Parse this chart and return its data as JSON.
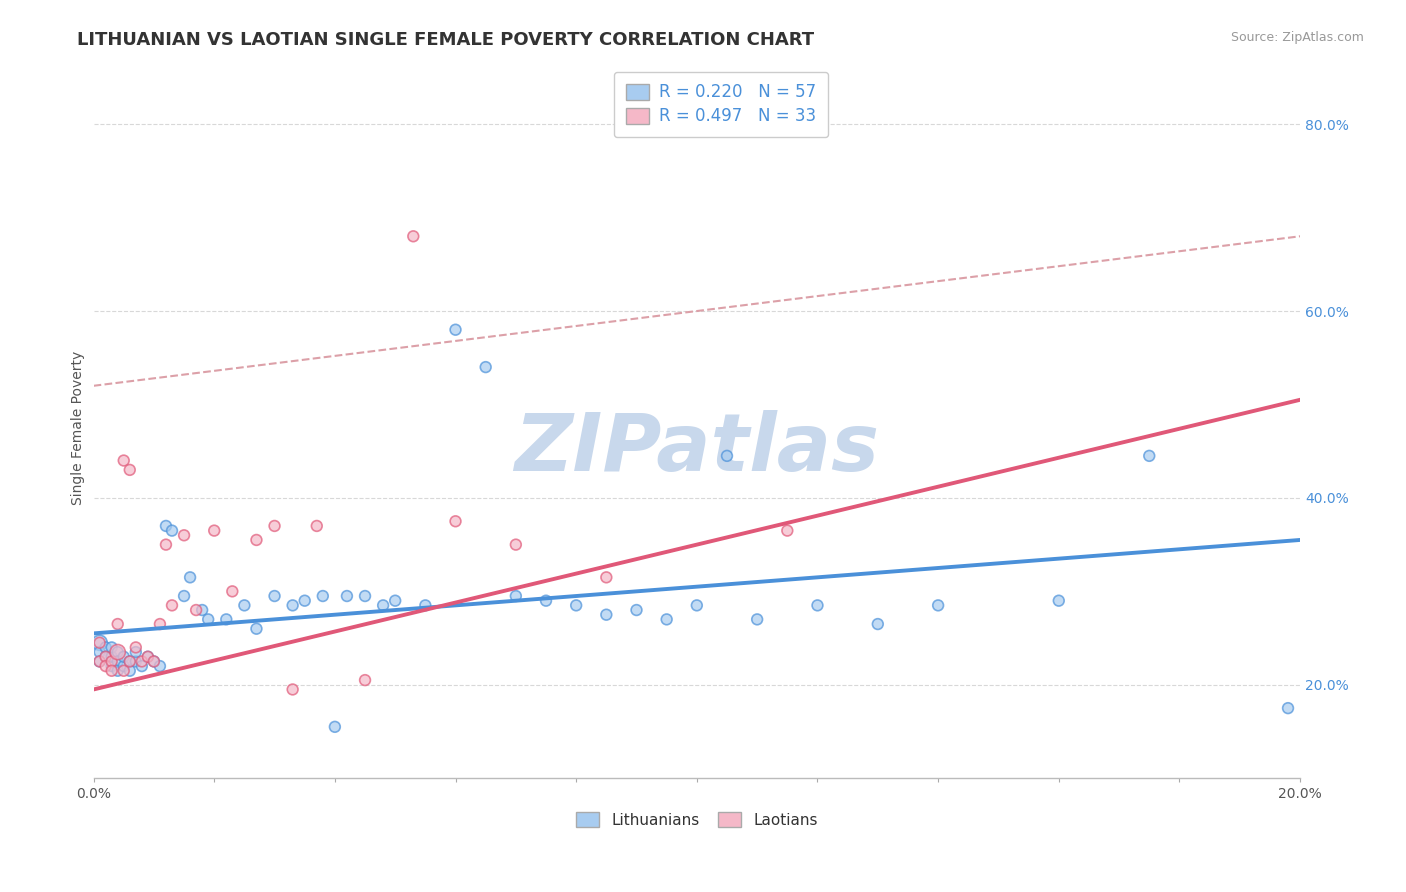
{
  "title": "LITHUANIAN VS LAOTIAN SINGLE FEMALE POVERTY CORRELATION CHART",
  "source_text": "Source: ZipAtlas.com",
  "ylabel": "Single Female Poverty",
  "xlim": [
    0.0,
    0.2
  ],
  "ylim": [
    0.1,
    0.85
  ],
  "xticks": [
    0.0,
    0.02,
    0.04,
    0.06,
    0.08,
    0.1,
    0.12,
    0.14,
    0.16,
    0.18,
    0.2
  ],
  "ytick_right_labels": [
    "20.0%",
    "40.0%",
    "60.0%",
    "80.0%"
  ],
  "ytick_right_values": [
    0.2,
    0.4,
    0.6,
    0.8
  ],
  "legend_r1": "R = 0.220",
  "legend_n1": "N = 57",
  "legend_r2": "R = 0.497",
  "legend_n2": "N = 33",
  "color_blue": "#A8CCF0",
  "color_pink": "#F5B8C8",
  "color_blue_line": "#4A90D9",
  "color_pink_line": "#E05878",
  "color_dash": "#DCA0A8",
  "watermark": "ZIPatlas",
  "watermark_color": "#C8D8EC",
  "background_color": "#FFFFFF",
  "grid_color": "#D8D8D8",
  "blue_trend_x0": 0.0,
  "blue_trend_y0": 0.255,
  "blue_trend_x1": 0.2,
  "blue_trend_y1": 0.355,
  "pink_trend_x0": 0.0,
  "pink_trend_y0": 0.195,
  "pink_trend_x1": 0.2,
  "pink_trend_y1": 0.505,
  "dash_trend_x0": 0.0,
  "dash_trend_y0": 0.52,
  "dash_trend_x1": 0.2,
  "dash_trend_y1": 0.68,
  "lith_x": [
    0.001,
    0.001,
    0.001,
    0.002,
    0.002,
    0.003,
    0.003,
    0.003,
    0.004,
    0.004,
    0.004,
    0.005,
    0.005,
    0.006,
    0.006,
    0.007,
    0.007,
    0.008,
    0.009,
    0.01,
    0.011,
    0.012,
    0.013,
    0.015,
    0.016,
    0.018,
    0.019,
    0.022,
    0.025,
    0.027,
    0.03,
    0.033,
    0.035,
    0.038,
    0.04,
    0.042,
    0.045,
    0.048,
    0.05,
    0.055,
    0.06,
    0.065,
    0.07,
    0.075,
    0.08,
    0.085,
    0.09,
    0.095,
    0.1,
    0.105,
    0.11,
    0.12,
    0.13,
    0.14,
    0.16,
    0.175,
    0.198
  ],
  "lith_y": [
    0.245,
    0.235,
    0.225,
    0.24,
    0.23,
    0.22,
    0.23,
    0.24,
    0.235,
    0.225,
    0.215,
    0.22,
    0.23,
    0.225,
    0.215,
    0.225,
    0.235,
    0.22,
    0.23,
    0.225,
    0.22,
    0.37,
    0.365,
    0.295,
    0.315,
    0.28,
    0.27,
    0.27,
    0.285,
    0.26,
    0.295,
    0.285,
    0.29,
    0.295,
    0.155,
    0.295,
    0.295,
    0.285,
    0.29,
    0.285,
    0.58,
    0.54,
    0.295,
    0.29,
    0.285,
    0.275,
    0.28,
    0.27,
    0.285,
    0.445,
    0.27,
    0.285,
    0.265,
    0.285,
    0.29,
    0.445,
    0.175
  ],
  "lith_size": [
    120,
    60,
    60,
    60,
    60,
    60,
    60,
    60,
    60,
    60,
    60,
    60,
    60,
    60,
    60,
    60,
    60,
    60,
    60,
    60,
    60,
    60,
    60,
    60,
    60,
    60,
    60,
    60,
    60,
    60,
    60,
    60,
    60,
    60,
    60,
    60,
    60,
    60,
    60,
    60,
    60,
    60,
    60,
    60,
    60,
    60,
    60,
    60,
    60,
    60,
    60,
    60,
    60,
    60,
    60,
    60,
    60
  ],
  "laot_x": [
    0.001,
    0.001,
    0.002,
    0.002,
    0.003,
    0.003,
    0.004,
    0.004,
    0.005,
    0.005,
    0.006,
    0.006,
    0.007,
    0.008,
    0.009,
    0.01,
    0.011,
    0.012,
    0.013,
    0.015,
    0.017,
    0.02,
    0.023,
    0.027,
    0.03,
    0.033,
    0.037,
    0.045,
    0.053,
    0.06,
    0.07,
    0.085,
    0.115
  ],
  "laot_y": [
    0.245,
    0.225,
    0.23,
    0.22,
    0.225,
    0.215,
    0.235,
    0.265,
    0.215,
    0.44,
    0.43,
    0.225,
    0.24,
    0.225,
    0.23,
    0.225,
    0.265,
    0.35,
    0.285,
    0.36,
    0.28,
    0.365,
    0.3,
    0.355,
    0.37,
    0.195,
    0.37,
    0.205,
    0.68,
    0.375,
    0.35,
    0.315,
    0.365
  ],
  "laot_size": [
    60,
    60,
    60,
    60,
    60,
    60,
    120,
    60,
    60,
    60,
    60,
    60,
    60,
    60,
    60,
    60,
    60,
    60,
    60,
    60,
    60,
    60,
    60,
    60,
    60,
    60,
    60,
    60,
    60,
    60,
    60,
    60,
    60
  ]
}
